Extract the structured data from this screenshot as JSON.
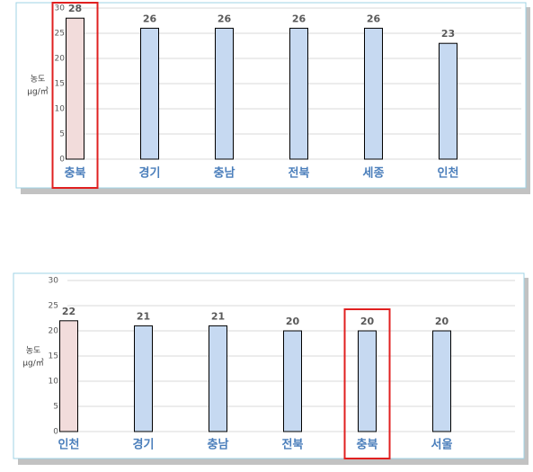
{
  "chart_data": [
    {
      "type": "bar",
      "y_label": [
        "농도",
        "μg/㎥"
      ],
      "categories": [
        "충북",
        "경기",
        "충남",
        "전북",
        "세종",
        "인천"
      ],
      "values": [
        28,
        26,
        26,
        26,
        26,
        23
      ],
      "colors": [
        "#f2dcdb",
        "#c6d9f1",
        "#c6d9f1",
        "#c6d9f1",
        "#c6d9f1",
        "#c6d9f1"
      ],
      "ylim": [
        0,
        30
      ],
      "yticks": [
        0,
        5,
        10,
        15,
        20,
        25,
        30
      ],
      "grid": true,
      "highlight": 0
    },
    {
      "type": "bar",
      "y_label": [
        "농도",
        "μg/㎥"
      ],
      "categories": [
        "인천",
        "경기",
        "충남",
        "전북",
        "충북",
        "서울"
      ],
      "values": [
        22,
        21,
        21,
        20,
        20,
        20
      ],
      "colors": [
        "#f2dcdb",
        "#c6d9f1",
        "#c6d9f1",
        "#c6d9f1",
        "#c6d9f1",
        "#c6d9f1"
      ],
      "ylim": [
        0,
        30
      ],
      "yticks": [
        0,
        5,
        10,
        15,
        20,
        25,
        30
      ],
      "grid": true,
      "highlight": 4
    }
  ]
}
